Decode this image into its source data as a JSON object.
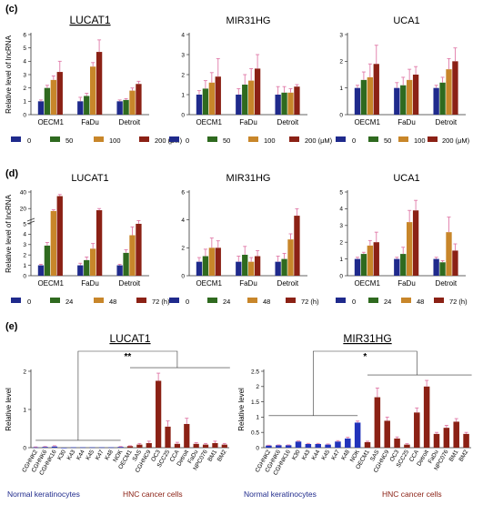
{
  "panels": {
    "c": {
      "label": "(c)",
      "legend": [
        "0",
        "50",
        "100",
        "200 (μM)"
      ]
    },
    "d": {
      "label": "(d)",
      "legend": [
        "0",
        "24",
        "48",
        "72 (h)"
      ]
    },
    "e": {
      "label": "(e)",
      "group_left": "Normal keratinocytes",
      "group_right": "HNC cancer cells"
    }
  },
  "colors": {
    "c": [
      "#1f2a8c",
      "#2f6a1f",
      "#c8862a",
      "#8b2115"
    ],
    "d": [
      "#1f2a8c",
      "#2f6a1f",
      "#c8862a",
      "#8b2115"
    ],
    "e_normal": "#2233bb",
    "e_cancer": "#8b2115",
    "error": "#e07aa8"
  },
  "chart_data": [
    {
      "type": "bar",
      "panel": "c",
      "title": "LUCAT1",
      "ylabel": "Relative level of lncRNA",
      "categories": [
        "OECM1",
        "FaDu",
        "Detroit"
      ],
      "ylim": [
        0,
        6
      ],
      "yticks": [
        0,
        1,
        2,
        3,
        4,
        5,
        6
      ],
      "series": [
        {
          "name": "0",
          "values": [
            1.0,
            1.0,
            1.0
          ],
          "errors": [
            0.1,
            0.3,
            0.1
          ]
        },
        {
          "name": "50",
          "values": [
            2.0,
            1.4,
            1.1
          ],
          "errors": [
            0.2,
            0.2,
            0.1
          ]
        },
        {
          "name": "100",
          "values": [
            2.6,
            3.6,
            1.8
          ],
          "errors": [
            0.3,
            0.3,
            0.2
          ]
        },
        {
          "name": "200 (μM)",
          "values": [
            3.2,
            4.7,
            2.3
          ],
          "errors": [
            0.8,
            0.9,
            0.2
          ]
        }
      ]
    },
    {
      "type": "bar",
      "panel": "c",
      "title": "MIR31HG",
      "ylabel": "",
      "categories": [
        "OECM1",
        "FaDu",
        "Detroit"
      ],
      "ylim": [
        0,
        4
      ],
      "yticks": [
        0,
        1,
        2,
        3,
        4
      ],
      "series": [
        {
          "name": "0",
          "values": [
            1.0,
            1.0,
            1.0
          ],
          "errors": [
            0.2,
            0.3,
            0.4
          ]
        },
        {
          "name": "50",
          "values": [
            1.3,
            1.5,
            1.1
          ],
          "errors": [
            0.4,
            0.5,
            0.3
          ]
        },
        {
          "name": "100",
          "values": [
            1.6,
            1.7,
            1.1
          ],
          "errors": [
            0.5,
            0.6,
            0.2
          ]
        },
        {
          "name": "200 (μM)",
          "values": [
            1.9,
            2.3,
            1.4
          ],
          "errors": [
            0.9,
            0.7,
            0.1
          ]
        }
      ]
    },
    {
      "type": "bar",
      "panel": "c",
      "title": "UCA1",
      "ylabel": "",
      "categories": [
        "OECM1",
        "FaDu",
        "Detroit"
      ],
      "ylim": [
        0,
        3
      ],
      "yticks": [
        0,
        1,
        2,
        3
      ],
      "series": [
        {
          "name": "0",
          "values": [
            1.0,
            1.0,
            1.0
          ],
          "errors": [
            0.1,
            0.2,
            0.1
          ]
        },
        {
          "name": "50",
          "values": [
            1.3,
            1.1,
            1.2
          ],
          "errors": [
            0.3,
            0.3,
            0.2
          ]
        },
        {
          "name": "100",
          "values": [
            1.4,
            1.3,
            1.7
          ],
          "errors": [
            0.5,
            0.4,
            0.4
          ]
        },
        {
          "name": "200 (μM)",
          "values": [
            1.9,
            1.5,
            2.0
          ],
          "errors": [
            0.7,
            0.3,
            0.5
          ]
        }
      ]
    },
    {
      "type": "bar",
      "panel": "d",
      "title": "LUCAT1",
      "ylabel": "Relative level of lncRNA",
      "categories": [
        "OECM1",
        "FaDu",
        "Detroit"
      ],
      "ylim": [
        0,
        40
      ],
      "yticks": [
        0,
        1,
        2,
        3,
        4,
        5,
        20,
        40
      ],
      "axis_break": {
        "below": 5,
        "above": 6,
        "upper_max": 40
      },
      "series": [
        {
          "name": "0",
          "values": [
            1.0,
            1.0,
            1.0
          ],
          "errors": [
            0.1,
            0.2,
            0.1
          ]
        },
        {
          "name": "24",
          "values": [
            2.9,
            1.5,
            2.2
          ],
          "errors": [
            0.3,
            0.3,
            0.3
          ]
        },
        {
          "name": "48",
          "values": [
            17.0,
            2.6,
            3.9
          ],
          "errors": [
            1.5,
            0.5,
            0.8
          ]
        },
        {
          "name": "72 (h)",
          "values": [
            35.0,
            18.0,
            5.0
          ],
          "errors": [
            2.0,
            2.0,
            0.5
          ]
        }
      ]
    },
    {
      "type": "bar",
      "panel": "d",
      "title": "MIR31HG",
      "ylabel": "",
      "categories": [
        "OECM1",
        "FaDu",
        "Detroit"
      ],
      "ylim": [
        0,
        6
      ],
      "yticks": [
        0,
        2,
        4,
        6
      ],
      "series": [
        {
          "name": "0",
          "values": [
            1.0,
            1.0,
            1.0
          ],
          "errors": [
            0.3,
            0.4,
            0.4
          ]
        },
        {
          "name": "24",
          "values": [
            1.4,
            1.5,
            1.2
          ],
          "errors": [
            0.5,
            0.6,
            0.4
          ]
        },
        {
          "name": "48",
          "values": [
            2.0,
            1.0,
            2.6
          ],
          "errors": [
            0.7,
            0.3,
            0.4
          ]
        },
        {
          "name": "72 (h)",
          "values": [
            2.0,
            1.4,
            4.3
          ],
          "errors": [
            0.5,
            0.4,
            0.5
          ]
        }
      ]
    },
    {
      "type": "bar",
      "panel": "d",
      "title": "UCA1",
      "ylabel": "",
      "categories": [
        "OECM1",
        "FaDu",
        "Detroit"
      ],
      "ylim": [
        0,
        5
      ],
      "yticks": [
        0,
        1,
        2,
        3,
        4,
        5
      ],
      "series": [
        {
          "name": "0",
          "values": [
            1.0,
            1.0,
            1.0
          ],
          "errors": [
            0.1,
            0.1,
            0.1
          ]
        },
        {
          "name": "24",
          "values": [
            1.3,
            1.3,
            0.8
          ],
          "errors": [
            0.1,
            0.4,
            0.1
          ]
        },
        {
          "name": "48",
          "values": [
            1.8,
            3.2,
            2.6
          ],
          "errors": [
            0.3,
            0.7,
            0.9
          ]
        },
        {
          "name": "72 (h)",
          "values": [
            2.0,
            3.9,
            1.5
          ],
          "errors": [
            0.6,
            0.6,
            0.4
          ]
        }
      ]
    },
    {
      "type": "bar",
      "panel": "e",
      "title": "LUCAT1",
      "ylabel": "Relative level",
      "ylim": [
        0,
        2
      ],
      "yticks": [
        0,
        1,
        2
      ],
      "significance": "**",
      "categories": [
        "CGHNK2",
        "CGHNK6",
        "CGHNK16",
        "K30",
        "K43",
        "K44",
        "K45",
        "K47",
        "K48",
        "NOK",
        "OECM1",
        "SAS",
        "CGHNC9",
        "OC3",
        "SCC25",
        "CCA",
        "Detroit",
        "FaDu",
        "NPC076",
        "BM1",
        "BM2"
      ],
      "groups": [
        "normal",
        "normal",
        "normal",
        "normal",
        "normal",
        "normal",
        "normal",
        "normal",
        "normal",
        "normal",
        "cancer",
        "cancer",
        "cancer",
        "cancer",
        "cancer",
        "cancer",
        "cancer",
        "cancer",
        "cancer",
        "cancer",
        "cancer"
      ],
      "values": [
        0.01,
        0.02,
        0.03,
        0.0,
        0.01,
        0.01,
        0.01,
        0.01,
        0.01,
        0.02,
        0.04,
        0.08,
        0.12,
        1.75,
        0.55,
        0.1,
        0.62,
        0.1,
        0.08,
        0.12,
        0.08
      ],
      "errors": [
        0.01,
        0.01,
        0.02,
        0.0,
        0.0,
        0.0,
        0.0,
        0.0,
        0.0,
        0.01,
        0.01,
        0.03,
        0.05,
        0.2,
        0.15,
        0.04,
        0.15,
        0.03,
        0.03,
        0.05,
        0.03
      ]
    },
    {
      "type": "bar",
      "panel": "e",
      "title": "MIR31HG",
      "ylabel": "Relative level",
      "ylim": [
        0,
        2.5
      ],
      "yticks": [
        0,
        0.5,
        1,
        1.5,
        2,
        2.5
      ],
      "significance": "*",
      "categories": [
        "CGHNK2",
        "CGHNK6",
        "CGHNK16",
        "K30",
        "K43",
        "K44",
        "K45",
        "K47",
        "K48",
        "NOK",
        "OECM1",
        "SAS",
        "CGHNC9",
        "OC3",
        "SCC25",
        "CCA",
        "Detroit",
        "FaDu",
        "NPC076",
        "BM1",
        "BM2"
      ],
      "groups": [
        "normal",
        "normal",
        "normal",
        "normal",
        "normal",
        "normal",
        "normal",
        "normal",
        "normal",
        "normal",
        "cancer",
        "cancer",
        "cancer",
        "cancer",
        "cancer",
        "cancer",
        "cancer",
        "cancer",
        "cancer",
        "cancer",
        "cancer"
      ],
      "values": [
        0.07,
        0.08,
        0.08,
        0.2,
        0.12,
        0.12,
        0.1,
        0.2,
        0.3,
        0.82,
        0.18,
        1.65,
        0.88,
        0.3,
        0.1,
        1.15,
        2.0,
        0.45,
        0.65,
        0.85,
        0.45
      ],
      "errors": [
        0.01,
        0.01,
        0.01,
        0.02,
        0.02,
        0.02,
        0.02,
        0.03,
        0.04,
        0.05,
        0.03,
        0.3,
        0.12,
        0.05,
        0.03,
        0.15,
        0.2,
        0.05,
        0.08,
        0.1,
        0.05
      ]
    }
  ]
}
